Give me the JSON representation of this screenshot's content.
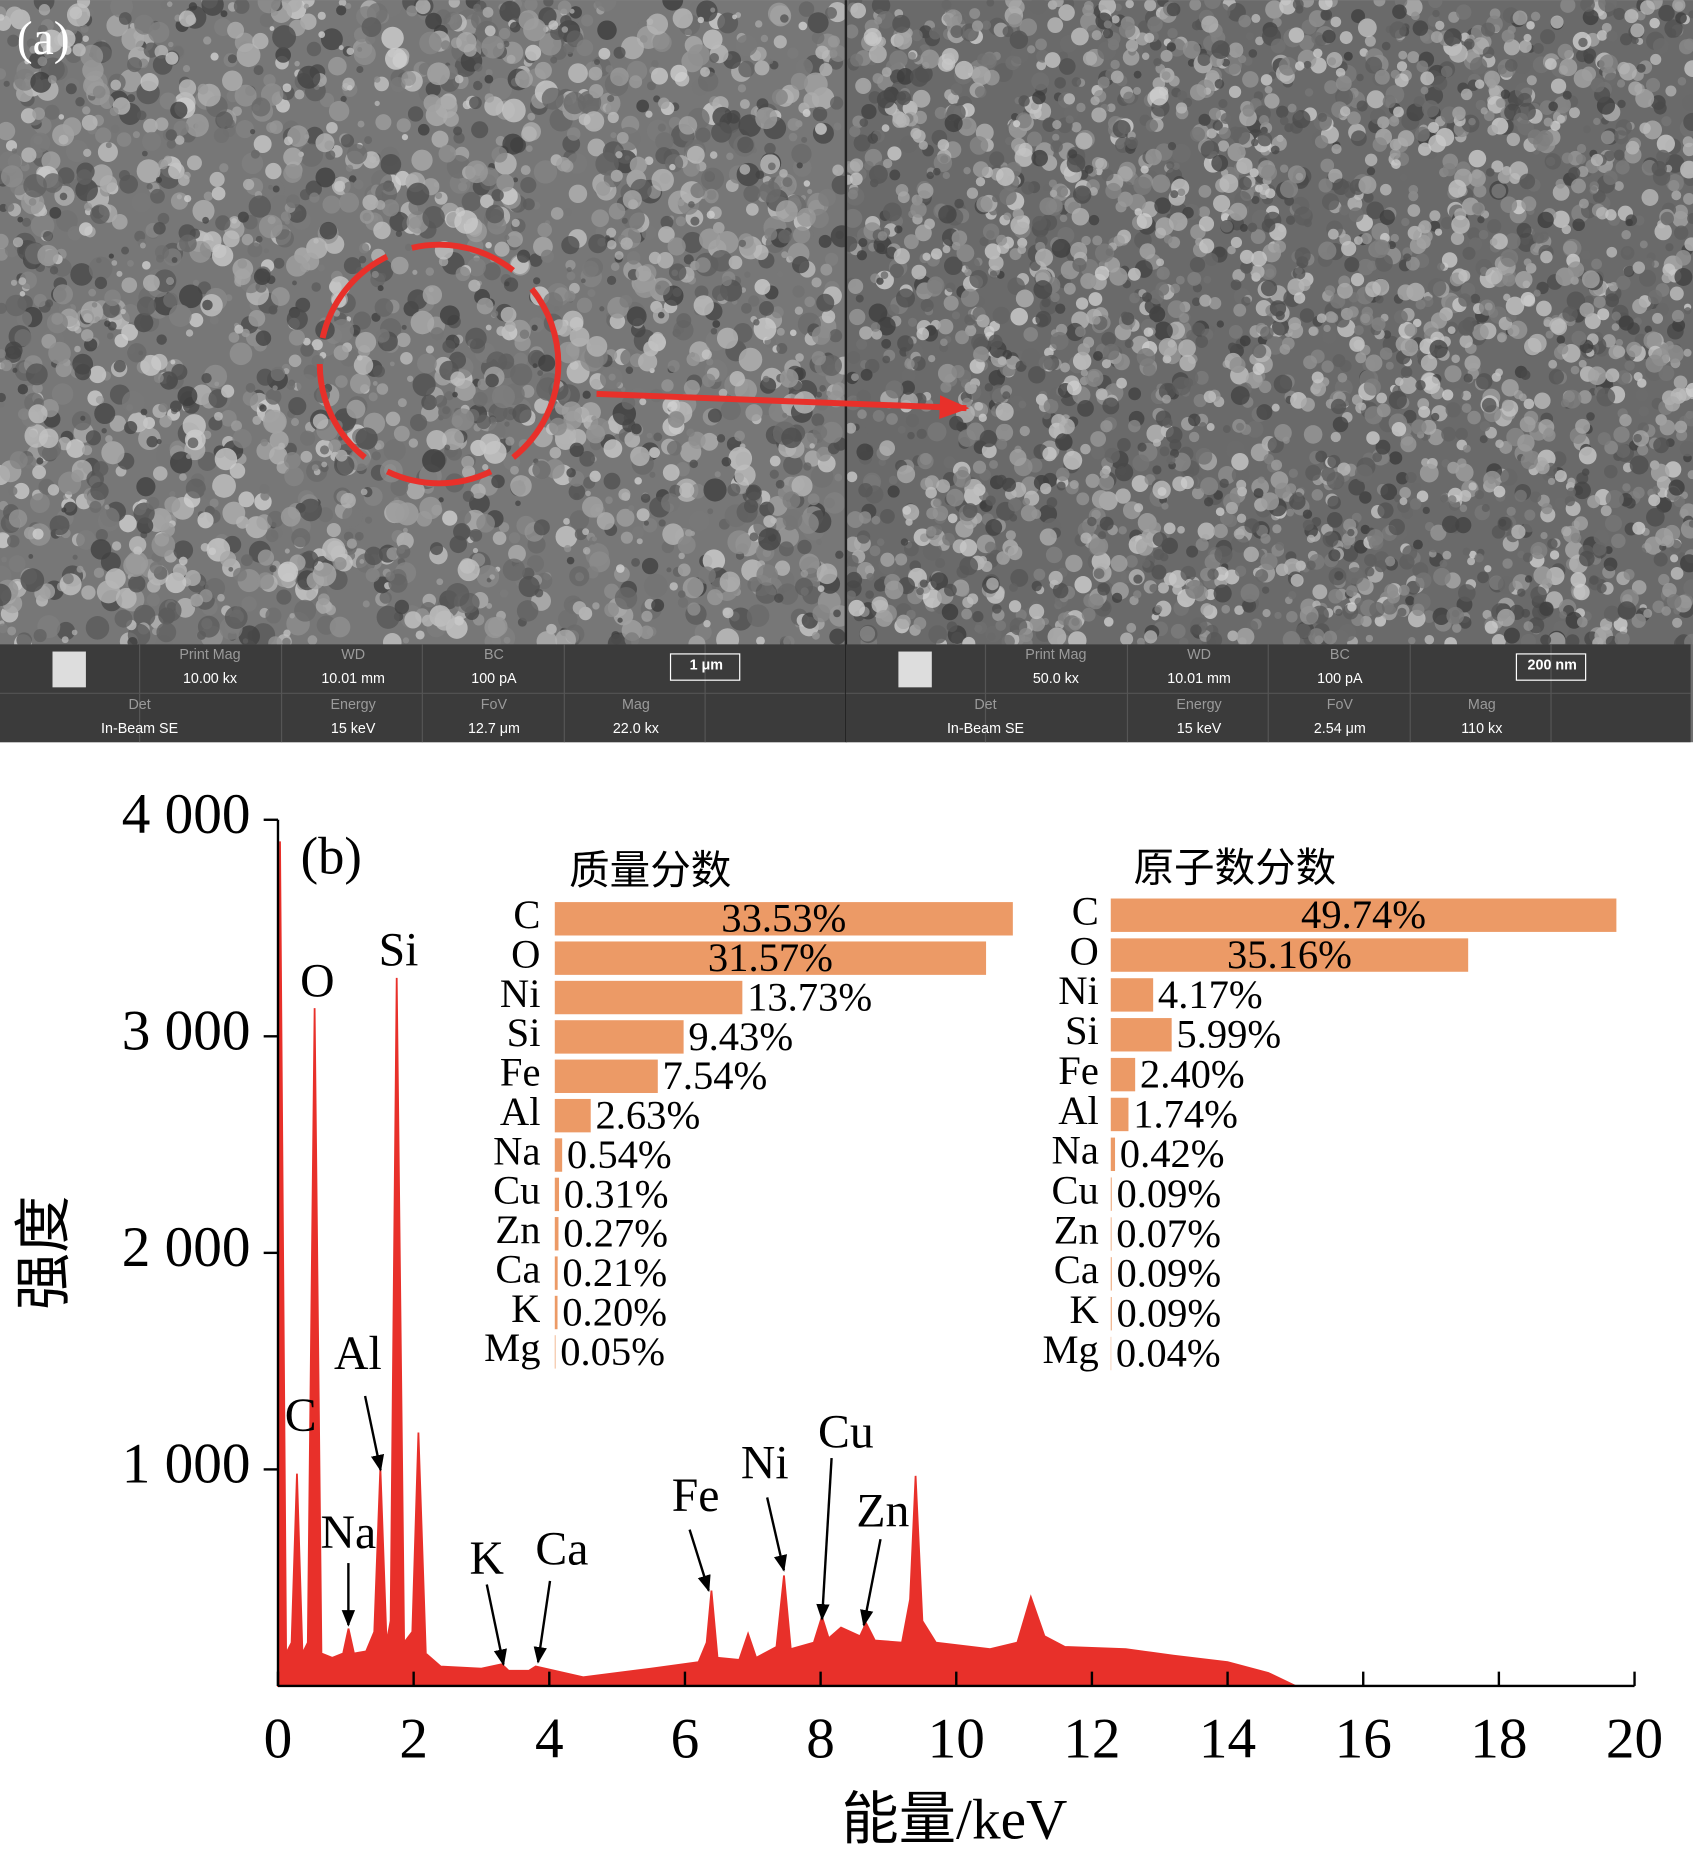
{
  "panel_a": {
    "label": "(a)",
    "images": [
      {
        "scale_bar": "1 μm",
        "fields": [
          {
            "label": "Print Mag",
            "value": "10.00 kx"
          },
          {
            "label": "WD",
            "value": "10.01 mm"
          },
          {
            "label": "BC",
            "value": "100 pA"
          },
          {
            "label": "Det",
            "value": "In-Beam SE"
          },
          {
            "label": "Energy",
            "value": "15 keV"
          },
          {
            "label": "FoV",
            "value": "12.7 μm"
          },
          {
            "label": "Mag",
            "value": "22.0 kx"
          }
        ]
      },
      {
        "scale_bar": "200 nm",
        "fields": [
          {
            "label": "Print Mag",
            "value": "50.0 kx"
          },
          {
            "label": "WD",
            "value": "10.01 mm"
          },
          {
            "label": "BC",
            "value": "100 pA"
          },
          {
            "label": "Det",
            "value": "In-Beam SE"
          },
          {
            "label": "Energy",
            "value": "15 keV"
          },
          {
            "label": "FoV",
            "value": "2.54 μm"
          },
          {
            "label": "Mag",
            "value": "110 kx"
          }
        ]
      }
    ]
  },
  "chart_data": [
    {
      "type": "area",
      "panel_label": "(b)",
      "x_label": "能量/keV",
      "y_label": "强度",
      "color": "#e8302a",
      "x": [
        0,
        0.03,
        0.12,
        0.2,
        0.28,
        0.36,
        0.44,
        0.54,
        0.64,
        0.8,
        0.96,
        1.04,
        1.12,
        1.3,
        1.42,
        1.51,
        1.6,
        1.66,
        1.75,
        1.86,
        1.98,
        2.07,
        2.18,
        2.4,
        3.0,
        3.3,
        3.4,
        3.7,
        3.8,
        4.5,
        5.5,
        6.2,
        6.32,
        6.39,
        6.48,
        6.8,
        6.93,
        7.05,
        7.35,
        7.46,
        7.56,
        7.9,
        8.02,
        8.12,
        8.3,
        8.58,
        8.67,
        8.8,
        9.2,
        9.32,
        9.4,
        9.5,
        9.7,
        10.5,
        10.9,
        11.1,
        11.3,
        11.6,
        12.5,
        13.2,
        14,
        14.6,
        15,
        16,
        20
      ],
      "values": [
        0,
        3900,
        150,
        200,
        980,
        150,
        200,
        3130,
        150,
        130,
        150,
        265,
        150,
        160,
        250,
        1010,
        200,
        300,
        3270,
        200,
        250,
        1170,
        150,
        90,
        80,
        100,
        70,
        70,
        90,
        40,
        80,
        110,
        200,
        440,
        130,
        120,
        240,
        130,
        180,
        510,
        170,
        200,
        320,
        220,
        270,
        230,
        290,
        210,
        200,
        400,
        970,
        300,
        200,
        170,
        200,
        410,
        230,
        180,
        170,
        140,
        110,
        60,
        0,
        0,
        0
      ],
      "xlim": [
        0,
        20
      ],
      "xticks": [
        0,
        2,
        4,
        6,
        8,
        10,
        12,
        14,
        16,
        18,
        20
      ],
      "ylim": [
        0,
        4000
      ],
      "yticks": [
        {
          "value": 1000,
          "label": "1 000"
        },
        {
          "value": 2000,
          "label": "2 000"
        },
        {
          "value": 3000,
          "label": "3 000"
        },
        {
          "value": 4000,
          "label": "4 000"
        }
      ],
      "annotations": [
        "C",
        "O",
        "Si",
        "Na",
        "Al",
        "K",
        "Ca",
        "Fe",
        "Ni",
        "Cu",
        "Zn"
      ]
    },
    {
      "type": "bar",
      "title": "质量分数",
      "color": "#ec9a66",
      "categories": [
        "C",
        "O",
        "Ni",
        "Si",
        "Fe",
        "Al",
        "Na",
        "Cu",
        "Zn",
        "Ca",
        "K",
        "Mg"
      ],
      "values": [
        33.53,
        31.57,
        13.73,
        9.43,
        7.54,
        2.63,
        0.54,
        0.31,
        0.27,
        0.21,
        0.2,
        0.05
      ],
      "value_labels": [
        "33.53%",
        "31.57%",
        "13.73%",
        "9.43%",
        "7.54%",
        "2.63%",
        "0.54%",
        "0.31%",
        "0.27%",
        "0.21%",
        "0.20%",
        "0.05%"
      ]
    },
    {
      "type": "bar",
      "title": "原子数分数",
      "color": "#ec9a66",
      "categories": [
        "C",
        "O",
        "Ni",
        "Si",
        "Fe",
        "Al",
        "Na",
        "Cu",
        "Zn",
        "Ca",
        "K",
        "Mg"
      ],
      "values": [
        49.74,
        35.16,
        4.17,
        5.99,
        2.4,
        1.74,
        0.42,
        0.09,
        0.07,
        0.09,
        0.09,
        0.04
      ],
      "value_labels": [
        "49.74%",
        "35.16%",
        "4.17%",
        "5.99%",
        "2.40%",
        "1.74%",
        "0.42%",
        "0.09%",
        "0.07%",
        "0.09%",
        "0.09%",
        "0.04%"
      ]
    }
  ]
}
